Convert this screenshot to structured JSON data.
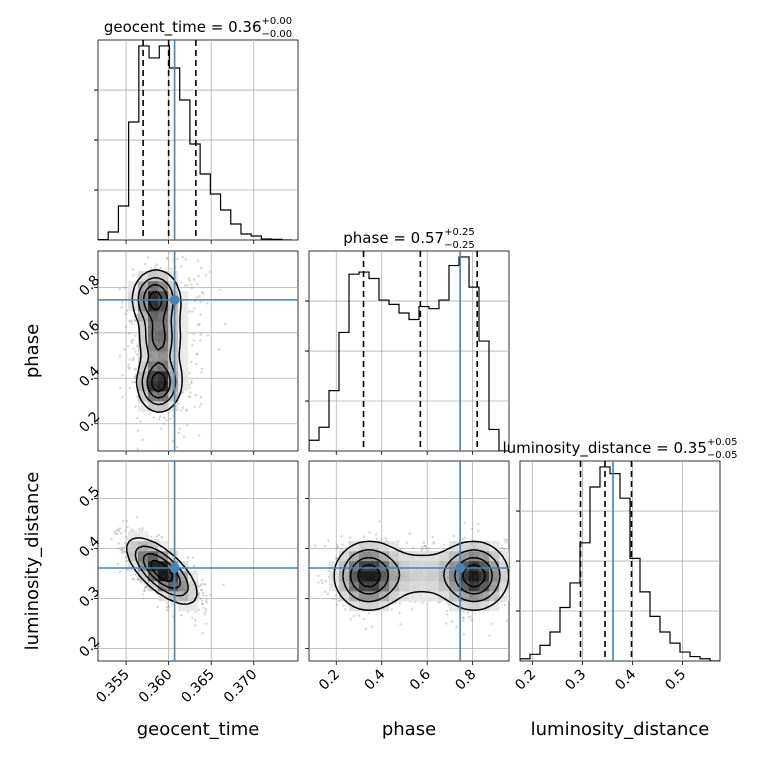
{
  "chart_data": {
    "type": "corner",
    "parameters": [
      "geocent_time",
      "phase",
      "luminosity_distance"
    ],
    "axis_labels": {
      "geocent_time": "geocent_time",
      "phase": "phase",
      "luminosity_distance": "luminosity_distance"
    },
    "ranges": {
      "geocent_time": [
        0.3517,
        0.3752
      ],
      "phase": [
        0.08,
        0.96
      ],
      "luminosity_distance": [
        0.175,
        0.575
      ]
    },
    "ticks": {
      "geocent_time": [
        0.355,
        0.36,
        0.365,
        0.37
      ],
      "phase": [
        0.2,
        0.4,
        0.6,
        0.8
      ],
      "luminosity_distance": [
        0.2,
        0.3,
        0.4,
        0.5
      ]
    },
    "tick_labels": {
      "geocent_time": [
        "0.355",
        "0.360",
        "0.365",
        "0.370"
      ],
      "phase": [
        "0.2",
        "0.4",
        "0.6",
        "0.8"
      ],
      "luminosity_distance": [
        "0.2",
        "0.3",
        "0.4",
        "0.5"
      ]
    },
    "titles": {
      "geocent_time": {
        "text": "geocent_time = 0.36",
        "plus": "+0.00",
        "minus": "−0.00"
      },
      "phase": {
        "text": "phase = 0.57",
        "plus": "+0.25",
        "minus": "−0.25"
      },
      "luminosity_distance": {
        "text": "luminosity_distance = 0.35",
        "plus": "+0.05",
        "minus": "−0.05"
      }
    },
    "truths": {
      "geocent_time": 0.3607,
      "phase": 0.745,
      "luminosity_distance": 0.361
    },
    "quantiles": {
      "geocent_time": [
        0.357,
        0.36,
        0.3632
      ],
      "phase": [
        0.32,
        0.57,
        0.82
      ],
      "luminosity_distance": [
        0.296,
        0.345,
        0.398
      ]
    },
    "histograms": {
      "geocent_time": {
        "edges": [
          0.3517,
          0.3529,
          0.3541,
          0.3553,
          0.3565,
          0.3577,
          0.3589,
          0.3601,
          0.3613,
          0.3625,
          0.3637,
          0.3649,
          0.3661,
          0.3673,
          0.3685,
          0.3697,
          0.3709,
          0.3721,
          0.3733,
          0.3745
        ],
        "values": [
          0.2,
          4,
          17,
          59,
          97,
          91,
          97,
          86,
          70,
          48,
          33,
          23,
          15,
          8,
          3,
          2,
          0.5,
          0.3,
          0
        ]
      },
      "phase": {
        "edges": [
          0.08,
          0.124,
          0.168,
          0.212,
          0.256,
          0.3,
          0.344,
          0.388,
          0.432,
          0.476,
          0.52,
          0.564,
          0.608,
          0.652,
          0.696,
          0.74,
          0.784,
          0.828,
          0.872,
          0.916,
          0.96
        ],
        "values": [
          5,
          11,
          28,
          55,
          82,
          83,
          80,
          70,
          68,
          64,
          61,
          67,
          66,
          70,
          86,
          90,
          76,
          51,
          10,
          0
        ]
      },
      "luminosity_distance": {
        "edges": [
          0.175,
          0.195,
          0.215,
          0.235,
          0.255,
          0.275,
          0.295,
          0.315,
          0.335,
          0.355,
          0.375,
          0.395,
          0.415,
          0.435,
          0.455,
          0.475,
          0.495,
          0.515,
          0.535,
          0.555,
          0.575
        ],
        "values": [
          1,
          3,
          7,
          13,
          24,
          35,
          53,
          78,
          87,
          84,
          73,
          46,
          31,
          20,
          13,
          8,
          4,
          2,
          1,
          0
        ]
      }
    },
    "gridlines": true
  }
}
